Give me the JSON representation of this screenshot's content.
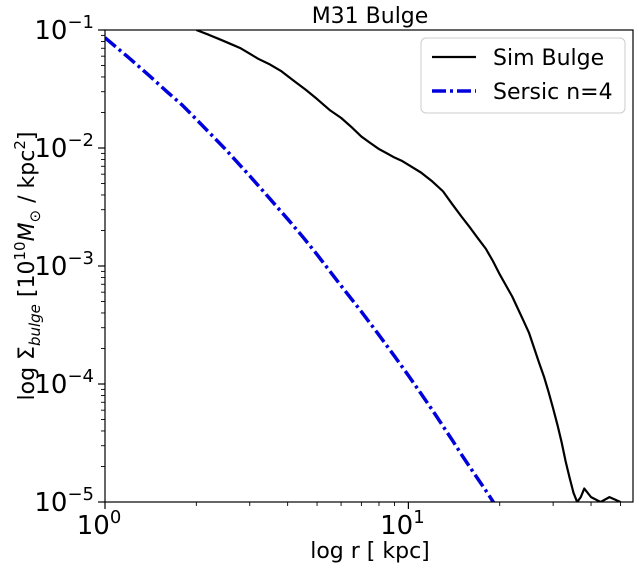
{
  "chart_data": {
    "type": "line",
    "title": "M31 Bulge",
    "xlabel_main": "log r [ kpc]",
    "ylabel": {
      "prefix": "log Σ",
      "sub": "bulge",
      "mid": " [10",
      "sup1": "10",
      "m": "M",
      "sun": "⊙",
      "unit": " / kpc",
      "sup2": "2",
      "end": "]"
    },
    "x_scale": "log",
    "y_scale": "log",
    "xlim": [
      1,
      55
    ],
    "ylim": [
      1e-05,
      0.1
    ],
    "grid": false,
    "legend_position": "top-right",
    "x_ticks": [
      {
        "value": 1,
        "base": "10",
        "exp": "0"
      },
      {
        "value": 10,
        "base": "10",
        "exp": "1"
      }
    ],
    "y_ticks": [
      {
        "value": 0.1,
        "base": "10",
        "exp": "−1"
      },
      {
        "value": 0.01,
        "base": "10",
        "exp": "−2"
      },
      {
        "value": 0.001,
        "base": "10",
        "exp": "−3"
      },
      {
        "value": 0.0001,
        "base": "10",
        "exp": "−4"
      },
      {
        "value": 1e-05,
        "base": "10",
        "exp": "−5"
      }
    ],
    "series": [
      {
        "name": "Sim Bulge",
        "color": "#000000",
        "style": "solid",
        "x": [
          2.0,
          2.2,
          2.4,
          2.6,
          2.8,
          3.0,
          3.2,
          3.5,
          3.8,
          4.2,
          4.6,
          5.0,
          5.5,
          6.0,
          6.5,
          7.0,
          7.5,
          8.0,
          8.5,
          9.0,
          9.5,
          10.0,
          11.0,
          12.0,
          13.0,
          14.0,
          15.0,
          16.0,
          17.0,
          18.0,
          19.0,
          20.0,
          21.0,
          22.0,
          23.0,
          24.0,
          25.0,
          26.0,
          27.0,
          28.0,
          29.0,
          30.0,
          31.0,
          32.0,
          33.0,
          34.0,
          35.0,
          36.0,
          37.0,
          38.0,
          40.0,
          43.0,
          46.0,
          50.0
        ],
        "y": [
          0.1,
          0.091,
          0.083,
          0.076,
          0.07,
          0.063,
          0.057,
          0.051,
          0.045,
          0.037,
          0.031,
          0.026,
          0.021,
          0.018,
          0.015,
          0.0125,
          0.011,
          0.0098,
          0.009,
          0.0083,
          0.0078,
          0.0072,
          0.0062,
          0.0052,
          0.0043,
          0.0033,
          0.0026,
          0.0021,
          0.0017,
          0.0014,
          0.0011,
          0.00085,
          0.00068,
          0.00055,
          0.00043,
          0.00034,
          0.00027,
          0.0002,
          0.00015,
          0.000115,
          8.5e-05,
          6.2e-05,
          4.5e-05,
          3.2e-05,
          2.2e-05,
          1.6e-05,
          1.2e-05,
          1e-05,
          1.1e-05,
          1.3e-05,
          1.1e-05,
          1e-05,
          1.1e-05,
          1e-05
        ]
      },
      {
        "name": "Sersic n=4",
        "color": "#0000dd",
        "style": "dashdot",
        "x": [
          1.0,
          1.2,
          1.4,
          1.6,
          1.8,
          2.0,
          2.5,
          3.0,
          3.5,
          4.0,
          4.5,
          5.0,
          6.0,
          7.0,
          8.0,
          9.0,
          10.0,
          11.0,
          12.0,
          13.0,
          14.0,
          15.0,
          16.0,
          17.0,
          18.0,
          19.0,
          20.0
        ],
        "y": [
          0.086,
          0.058,
          0.041,
          0.03,
          0.023,
          0.0175,
          0.0097,
          0.0058,
          0.0037,
          0.0025,
          0.00175,
          0.00125,
          0.00068,
          0.00041,
          0.00026,
          0.000172,
          0.000118,
          8.3e-05,
          6e-05,
          4.4e-05,
          3.3e-05,
          2.5e-05,
          1.95e-05,
          1.55e-05,
          1.25e-05,
          1.01e-05,
          8.2e-06
        ]
      }
    ]
  }
}
